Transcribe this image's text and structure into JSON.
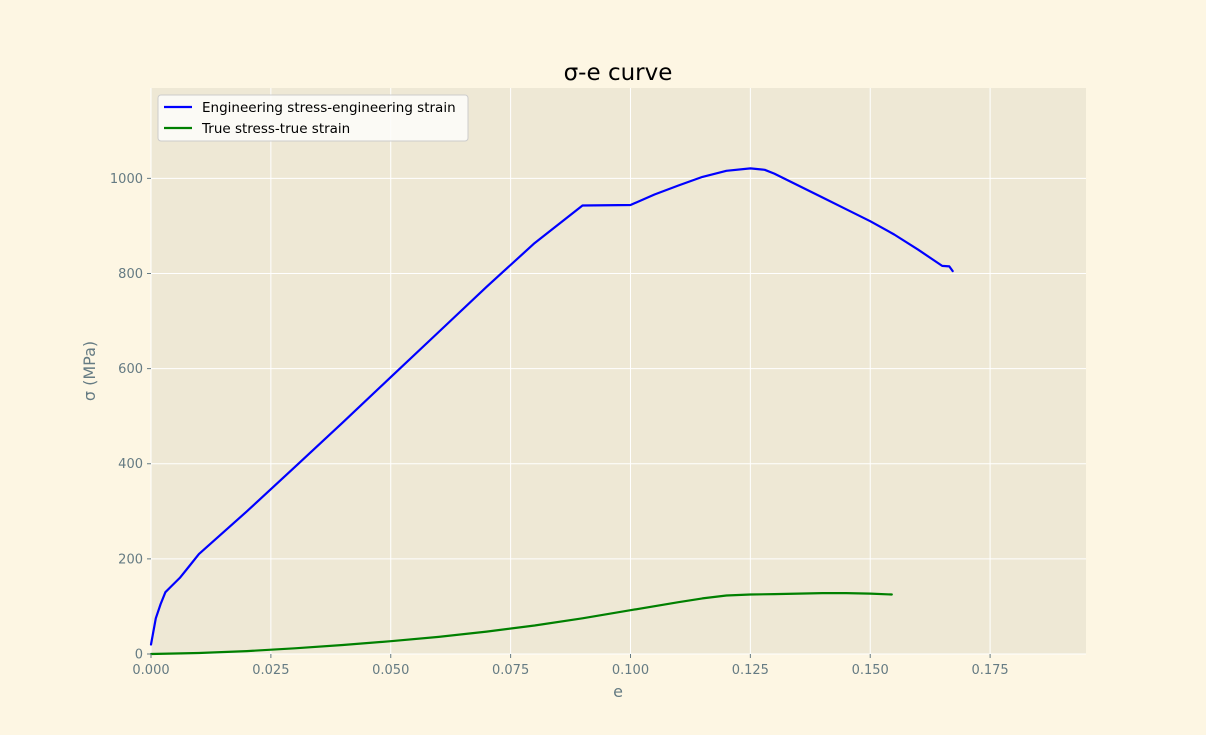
{
  "chart_data": {
    "type": "line",
    "title": "σ-e curve",
    "xlabel": "e",
    "ylabel": "σ (MPa)",
    "xlim": [
      0,
      0.195
    ],
    "ylim": [
      0,
      1190
    ],
    "xticks": [
      0.0,
      0.025,
      0.05,
      0.075,
      0.1,
      0.125,
      0.15,
      0.175
    ],
    "xtick_labels": [
      "0.000",
      "0.025",
      "0.050",
      "0.075",
      "0.100",
      "0.125",
      "0.150",
      "0.175"
    ],
    "yticks": [
      0,
      200,
      400,
      600,
      800,
      1000
    ],
    "ytick_labels": [
      "0",
      "200",
      "400",
      "600",
      "800",
      "1000"
    ],
    "grid": true,
    "legend_position": "top-left",
    "colors": {
      "figure_bg": "#fdf6e3",
      "plot_bg": "#eee8d5",
      "grid": "#ffffff",
      "axis_text": "#657b83"
    },
    "series": [
      {
        "name": "Engineering stress-engineering strain",
        "color": "#0000ff",
        "x": [
          0.0,
          0.001,
          0.002,
          0.003,
          0.004,
          0.006,
          0.008,
          0.01,
          0.015,
          0.02,
          0.03,
          0.04,
          0.05,
          0.06,
          0.07,
          0.08,
          0.09,
          0.1,
          0.105,
          0.11,
          0.115,
          0.12,
          0.125,
          0.128,
          0.13,
          0.135,
          0.14,
          0.145,
          0.15,
          0.155,
          0.16,
          0.165,
          0.1665,
          0.1672
        ],
        "y": [
          20,
          75,
          105,
          130,
          140,
          160,
          185,
          210,
          255,
          300,
          393,
          487,
          582,
          677,
          772,
          864,
          943,
          944,
          966,
          985,
          1003,
          1016,
          1021,
          1018,
          1010,
          985,
          960,
          935,
          910,
          882,
          850,
          816,
          815,
          805
        ]
      },
      {
        "name": "True stress-true strain",
        "color": "#008000",
        "x": [
          0.0,
          0.01,
          0.02,
          0.03,
          0.04,
          0.05,
          0.06,
          0.07,
          0.08,
          0.09,
          0.1,
          0.11,
          0.115,
          0.12,
          0.125,
          0.13,
          0.135,
          0.14,
          0.145,
          0.15,
          0.1545
        ],
        "y": [
          0,
          2,
          6,
          12,
          19,
          27,
          36,
          47,
          60,
          75,
          92,
          109,
          117,
          123,
          125,
          126,
          127,
          128,
          128,
          127,
          125
        ]
      }
    ]
  }
}
